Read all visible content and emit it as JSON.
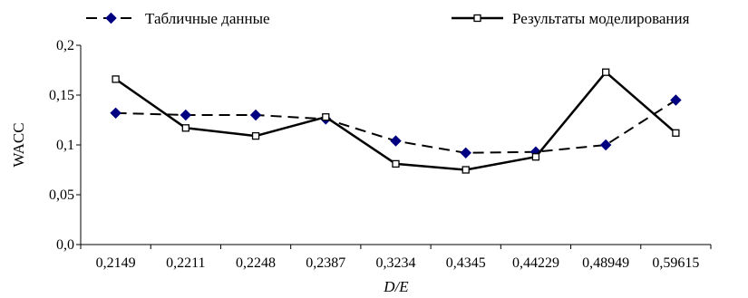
{
  "chart_data": {
    "type": "line",
    "title": "",
    "xlabel": "D/E",
    "ylabel": "WACC",
    "categories": [
      "0,2149",
      "0,2211",
      "0,2248",
      "0,2387",
      "0,3234",
      "0,4345",
      "0,44229",
      "0,48949",
      "0,59615"
    ],
    "ylim": [
      0,
      0.2
    ],
    "yticks": [
      0,
      0.05,
      0.1,
      0.15,
      0.2
    ],
    "ytick_labels": [
      "0,0",
      "0,05",
      "0,1",
      "0,15",
      "0,2"
    ],
    "grid": false,
    "legend_position": "top",
    "series": [
      {
        "name": "Табличные данные",
        "values": [
          0.132,
          0.13,
          0.13,
          0.126,
          0.104,
          0.092,
          0.093,
          0.1,
          0.145
        ],
        "color": "#000080",
        "line_style": "dashed",
        "marker": "diamond"
      },
      {
        "name": "Результаты моделирования",
        "values": [
          0.166,
          0.117,
          0.109,
          0.128,
          0.081,
          0.075,
          0.088,
          0.173,
          0.112
        ],
        "color": "#000000",
        "line_style": "solid",
        "marker": "square-open"
      }
    ]
  }
}
